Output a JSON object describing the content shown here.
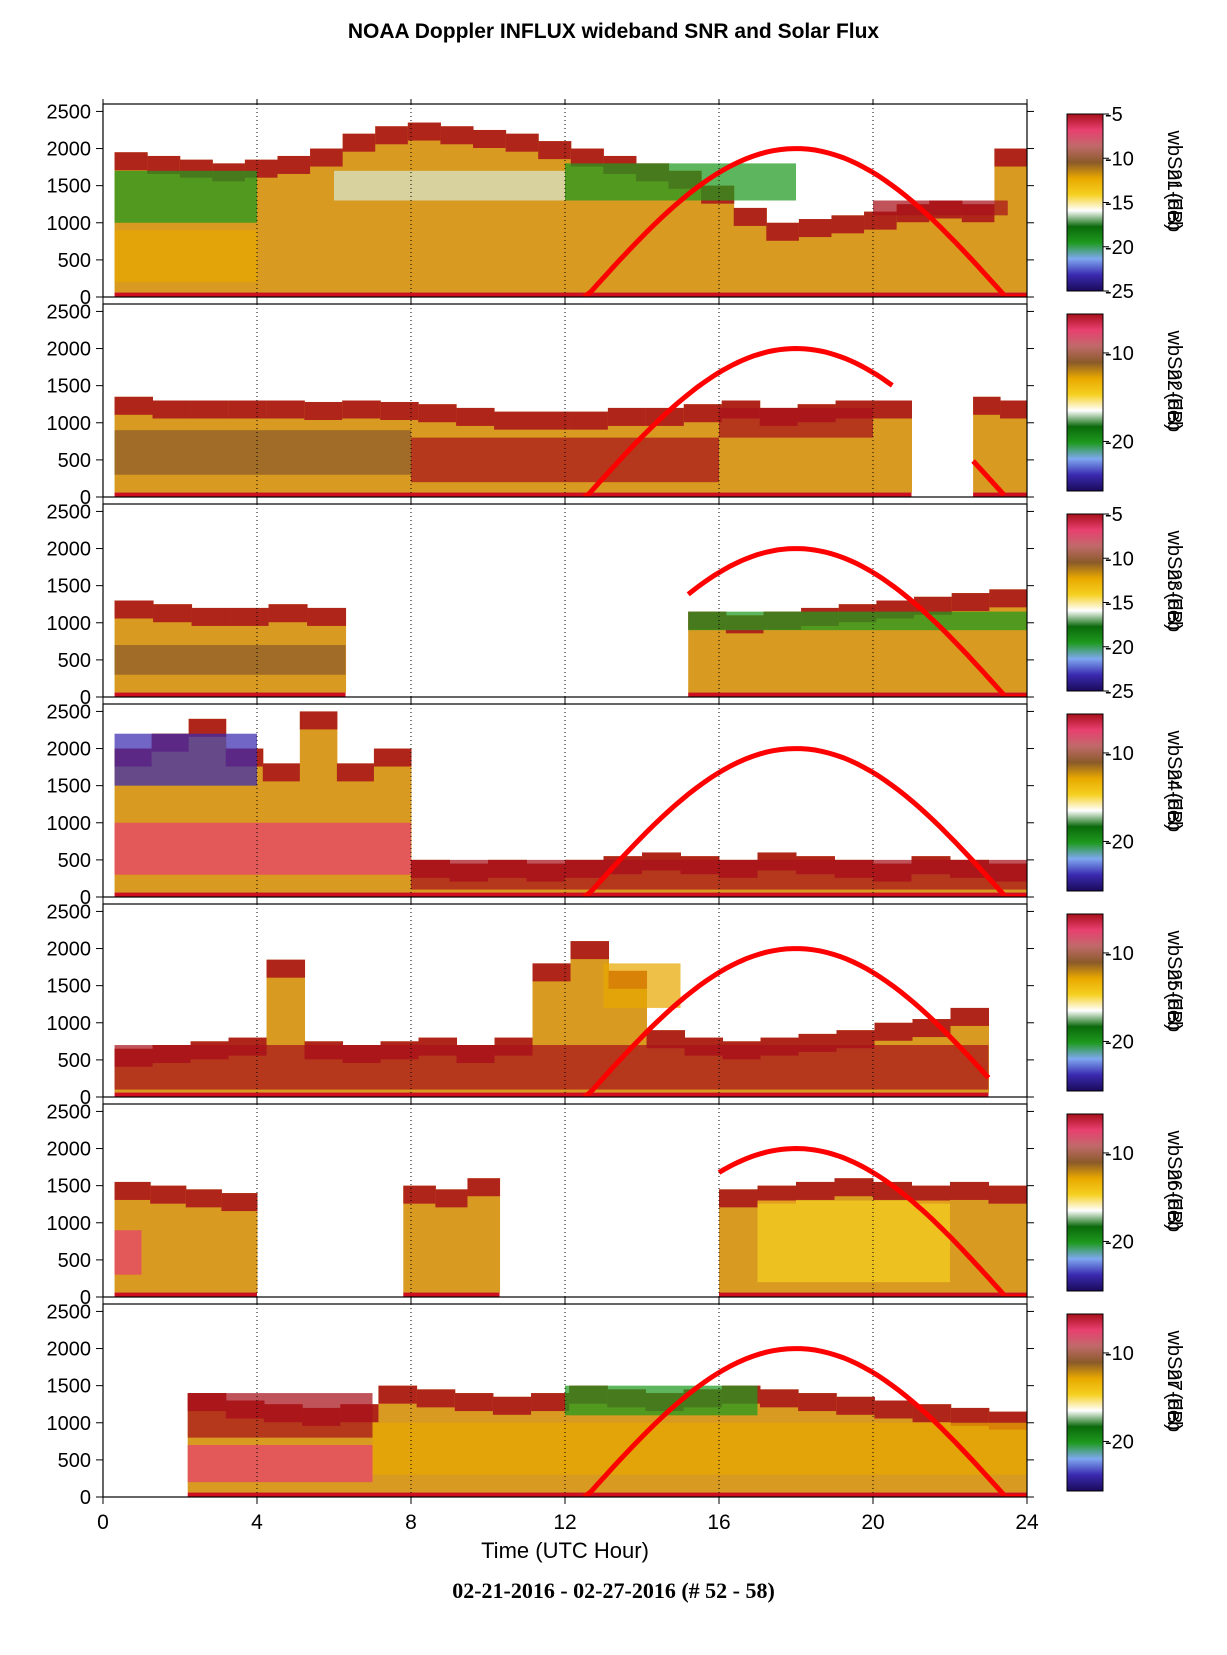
{
  "title": "NOAA Doppler INFLUX wideband SNR and Solar Flux",
  "footer": "02-21-2016 - 02-27-2016   (# 52 - 58)",
  "colors": {
    "solar_flux": "#ff0000",
    "colorbar_stops": [
      "#1a0a5a",
      "#3a2ab0",
      "#7fa8f0",
      "#1e9a1e",
      "#0a6a0a",
      "#ffffff",
      "#f5d020",
      "#e8a800",
      "#8a5a2a",
      "#c06a6a",
      "#e84070",
      "#a8101a"
    ]
  },
  "chart_data": {
    "type": "heatmap",
    "xlabel": "Time (UTC Hour)",
    "xlim": [
      0,
      24
    ],
    "xticks": [
      0,
      4,
      8,
      12,
      16,
      20,
      24
    ],
    "ylim": [
      0,
      2600
    ],
    "yticks": [
      0,
      500,
      1000,
      1500,
      2000,
      2500
    ],
    "grid": "vertical dotted at each x tick",
    "colorbar_label": "wbSnr (dB)",
    "solar_flux_curve": {
      "color": "red",
      "peak_hour": 18,
      "peak_value": 2000,
      "sunrise_hour": 12.5,
      "sunset_hour": 23.4
    },
    "panels": [
      {
        "date": "21-Feb",
        "colorbar_ticks": [
          "-5",
          "-10",
          "-15",
          "-20",
          "-25"
        ],
        "segments": [
          {
            "start": 0.3,
            "end": 24,
            "tops": [
              1950,
              1900,
              1850,
              1800,
              1850,
              1900,
              2000,
              2200,
              2300,
              2350,
              2300,
              2250,
              2200,
              2100,
              2000,
              1900,
              1800,
              1700,
              1500,
              1200,
              1000,
              1050,
              1100,
              1150,
              1250,
              1300,
              1250,
              2000
            ]
          }
        ],
        "zones": [
          {
            "x0": 0.3,
            "x1": 4,
            "y0": 200,
            "y1": 900,
            "color": "#e8a800"
          },
          {
            "x0": 0.3,
            "x1": 4,
            "y0": 1000,
            "y1": 1700,
            "color": "#1e9a1e"
          },
          {
            "x0": 6,
            "x1": 12,
            "y0": 1300,
            "y1": 1700,
            "color": "#d8e8d0"
          },
          {
            "x0": 12,
            "x1": 18,
            "y0": 1300,
            "y1": 1800,
            "color": "#1e9a1e"
          },
          {
            "x0": 20,
            "x1": 23.5,
            "y0": 1100,
            "y1": 1300,
            "color": "#a8101a"
          }
        ],
        "show_curve": true,
        "curve_start": 12.5,
        "curve_end": 23.4
      },
      {
        "date": "22-Feb",
        "colorbar_ticks": [
          "-10",
          "-20"
        ],
        "segments": [
          {
            "start": 0.3,
            "end": 21,
            "tops": [
              1350,
              1300,
              1300,
              1300,
              1300,
              1280,
              1300,
              1280,
              1250,
              1200,
              1150,
              1150,
              1150,
              1200,
              1200,
              1250,
              1300,
              1200,
              1250,
              1300,
              1300
            ]
          },
          {
            "start": 22.6,
            "end": 24,
            "tops": [
              1350,
              1300
            ]
          }
        ],
        "zones": [
          {
            "x0": 0.3,
            "x1": 8,
            "y0": 300,
            "y1": 900,
            "color": "#8a5a2a"
          },
          {
            "x0": 8,
            "x1": 16,
            "y0": 200,
            "y1": 800,
            "color": "#a8101a"
          },
          {
            "x0": 16,
            "x1": 20,
            "y0": 800,
            "y1": 1200,
            "color": "#a8101a"
          }
        ],
        "show_curve": true,
        "curve_start": 12.5,
        "curve_end": 20.5,
        "curve2_start": 22.6,
        "curve2_end": 23.4
      },
      {
        "date": "23-Feb",
        "colorbar_ticks": [
          "-5",
          "-10",
          "-15",
          "-20",
          "-25"
        ],
        "segments": [
          {
            "start": 0.3,
            "end": 6.3,
            "tops": [
              1300,
              1250,
              1200,
              1200,
              1250,
              1200
            ]
          },
          {
            "start": 15.2,
            "end": 24,
            "tops": [
              1150,
              1100,
              1150,
              1200,
              1250,
              1300,
              1350,
              1400,
              1450
            ]
          }
        ],
        "zones": [
          {
            "x0": 0.3,
            "x1": 6.3,
            "y0": 300,
            "y1": 700,
            "color": "#8a5a2a"
          },
          {
            "x0": 15.2,
            "x1": 24,
            "y0": 900,
            "y1": 1150,
            "color": "#1e9a1e"
          }
        ],
        "show_curve": true,
        "curve_start": 15.2,
        "curve_end": 23.4
      },
      {
        "date": "24-Feb",
        "colorbar_ticks": [
          "-10",
          "-20"
        ],
        "segments": [
          {
            "start": 0.3,
            "end": 8,
            "tops": [
              2000,
              2200,
              2400,
              2000,
              1800,
              2500,
              1800,
              2000
            ]
          },
          {
            "start": 8,
            "end": 24,
            "tops": [
              500,
              450,
              500,
              450,
              500,
              550,
              600,
              550,
              500,
              600,
              550,
              500,
              450,
              550,
              500,
              450
            ]
          }
        ],
        "zones": [
          {
            "x0": 0.3,
            "x1": 4,
            "y0": 1500,
            "y1": 2200,
            "color": "#3a2ab0"
          },
          {
            "x0": 0.3,
            "x1": 8,
            "y0": 300,
            "y1": 1000,
            "color": "#e84070"
          },
          {
            "x0": 8,
            "x1": 24,
            "y0": 100,
            "y1": 500,
            "color": "#a8101a"
          }
        ],
        "show_curve": true,
        "curve_start": 12.5,
        "curve_end": 23.4
      },
      {
        "date": "25-Feb",
        "colorbar_ticks": [
          "-10",
          "-20"
        ],
        "segments": [
          {
            "start": 0.3,
            "end": 23,
            "tops": [
              650,
              700,
              750,
              800,
              1850,
              750,
              700,
              750,
              800,
              700,
              800,
              1800,
              2100,
              1700,
              900,
              800,
              750,
              800,
              850,
              900,
              1000,
              1050,
              1200
            ]
          }
        ],
        "zones": [
          {
            "x0": 0.3,
            "x1": 23,
            "y0": 100,
            "y1": 700,
            "color": "#a8101a"
          },
          {
            "x0": 13,
            "x1": 15,
            "y0": 1200,
            "y1": 1800,
            "color": "#e8a800"
          }
        ],
        "show_curve": true,
        "curve_start": 12.5,
        "curve_end": 23
      },
      {
        "date": "26-Feb",
        "colorbar_ticks": [
          "-10",
          "-20"
        ],
        "segments": [
          {
            "start": 0.3,
            "end": 4,
            "tops": [
              1550,
              1500,
              1450,
              1400
            ]
          },
          {
            "start": 7.8,
            "end": 10.3,
            "tops": [
              1500,
              1450,
              1600
            ]
          },
          {
            "start": 16,
            "end": 24,
            "tops": [
              1450,
              1500,
              1550,
              1600,
              1550,
              1500,
              1550,
              1500
            ]
          }
        ],
        "zones": [
          {
            "x0": 0.3,
            "x1": 1,
            "y0": 300,
            "y1": 900,
            "color": "#e84070"
          },
          {
            "x0": 17,
            "x1": 22,
            "y0": 200,
            "y1": 1300,
            "color": "#f5d020"
          }
        ],
        "show_curve": true,
        "curve_start": 16,
        "curve_end": 23.4
      },
      {
        "date": "27-Feb",
        "colorbar_ticks": [
          "-10",
          "-20"
        ],
        "segments": [
          {
            "start": 2.2,
            "end": 24,
            "tops": [
              1400,
              1300,
              1250,
              1200,
              1250,
              1500,
              1450,
              1400,
              1350,
              1400,
              1500,
              1450,
              1400,
              1450,
              1500,
              1450,
              1400,
              1350,
              1300,
              1250,
              1200,
              1150
            ]
          }
        ],
        "zones": [
          {
            "x0": 2.2,
            "x1": 7,
            "y0": 800,
            "y1": 1400,
            "color": "#a8101a"
          },
          {
            "x0": 2.2,
            "x1": 7,
            "y0": 200,
            "y1": 700,
            "color": "#e84070"
          },
          {
            "x0": 12,
            "x1": 17,
            "y0": 1100,
            "y1": 1500,
            "color": "#1e9a1e"
          },
          {
            "x0": 7,
            "x1": 24,
            "y0": 300,
            "y1": 1000,
            "color": "#e8a800"
          }
        ],
        "show_curve": true,
        "curve_start": 12.5,
        "curve_end": 23.4
      }
    ]
  }
}
